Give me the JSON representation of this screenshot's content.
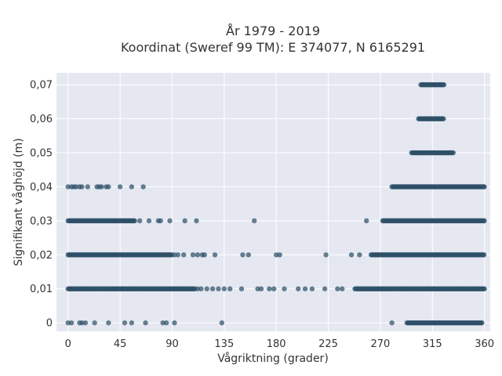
{
  "chart_data": {
    "type": "scatter",
    "title_line1": "År 1979 - 2019",
    "title_line2": "Koordinat (Sweref 99 TM): E 374077, N 6165291",
    "xlabel": "Vågriktning (grader)",
    "ylabel": "Signifikant våghöjd (m)",
    "xlim": [
      -10,
      365
    ],
    "ylim": [
      -0.0025,
      0.0735
    ],
    "xticks": [
      0,
      45,
      90,
      135,
      180,
      225,
      270,
      315,
      360
    ],
    "xtick_labels": [
      "0",
      "45",
      "90",
      "135",
      "180",
      "225",
      "270",
      "315",
      "360"
    ],
    "yticks": [
      0,
      0.01,
      0.02,
      0.03,
      0.04,
      0.05,
      0.06,
      0.07
    ],
    "ytick_labels": [
      "0",
      "0,01",
      "0,02",
      "0,03",
      "0,04",
      "0,05",
      "0,06",
      "0,07"
    ],
    "grid": true,
    "marker_color": "#2e5068",
    "plot_background": "#e5e8f1",
    "clusters": [
      {
        "y": 0.07,
        "x_range": [
          305,
          325
        ]
      },
      {
        "y": 0.06,
        "x_range": [
          303,
          325
        ]
      },
      {
        "y": 0.05,
        "x_range": [
          297,
          333
        ]
      },
      {
        "y": 0.04,
        "x_range": [
          280,
          360
        ]
      },
      {
        "y": 0.03,
        "x_range": [
          272,
          360
        ]
      },
      {
        "y": 0.02,
        "x_range": [
          262,
          360
        ]
      },
      {
        "y": 0.01,
        "x_range": [
          248,
          360
        ]
      },
      {
        "y": 0.0,
        "x_range": [
          293,
          358
        ]
      },
      {
        "y": 0.01,
        "x_range": [
          0,
          110
        ]
      },
      {
        "y": 0.02,
        "x_range": [
          0,
          90
        ]
      },
      {
        "y": 0.03,
        "x_range": [
          0,
          58
        ]
      }
    ],
    "points": [
      {
        "x": 0,
        "y": 0.04
      },
      {
        "x": 3,
        "y": 0.04
      },
      {
        "x": 5,
        "y": 0.04
      },
      {
        "x": 7,
        "y": 0.04
      },
      {
        "x": 10,
        "y": 0.04
      },
      {
        "x": 12,
        "y": 0.04
      },
      {
        "x": 17,
        "y": 0.04
      },
      {
        "x": 25,
        "y": 0.04
      },
      {
        "x": 27,
        "y": 0.04
      },
      {
        "x": 29,
        "y": 0.04
      },
      {
        "x": 33,
        "y": 0.04
      },
      {
        "x": 35,
        "y": 0.04
      },
      {
        "x": 45,
        "y": 0.04
      },
      {
        "x": 55,
        "y": 0.04
      },
      {
        "x": 65,
        "y": 0.04
      },
      {
        "x": 62,
        "y": 0.03
      },
      {
        "x": 70,
        "y": 0.03
      },
      {
        "x": 78,
        "y": 0.03
      },
      {
        "x": 80,
        "y": 0.03
      },
      {
        "x": 88,
        "y": 0.03
      },
      {
        "x": 101,
        "y": 0.03
      },
      {
        "x": 111,
        "y": 0.03
      },
      {
        "x": 161,
        "y": 0.03
      },
      {
        "x": 258,
        "y": 0.03
      },
      {
        "x": 92,
        "y": 0.02
      },
      {
        "x": 95,
        "y": 0.02
      },
      {
        "x": 100,
        "y": 0.02
      },
      {
        "x": 108,
        "y": 0.02
      },
      {
        "x": 112,
        "y": 0.02
      },
      {
        "x": 116,
        "y": 0.02
      },
      {
        "x": 118,
        "y": 0.02
      },
      {
        "x": 127,
        "y": 0.02
      },
      {
        "x": 151,
        "y": 0.02
      },
      {
        "x": 156,
        "y": 0.02
      },
      {
        "x": 180,
        "y": 0.02
      },
      {
        "x": 183,
        "y": 0.02
      },
      {
        "x": 223,
        "y": 0.02
      },
      {
        "x": 245,
        "y": 0.02
      },
      {
        "x": 252,
        "y": 0.02
      },
      {
        "x": 112,
        "y": 0.01
      },
      {
        "x": 115,
        "y": 0.01
      },
      {
        "x": 120,
        "y": 0.01
      },
      {
        "x": 125,
        "y": 0.01
      },
      {
        "x": 130,
        "y": 0.01
      },
      {
        "x": 135,
        "y": 0.01
      },
      {
        "x": 140,
        "y": 0.01
      },
      {
        "x": 150,
        "y": 0.01
      },
      {
        "x": 164,
        "y": 0.01
      },
      {
        "x": 167,
        "y": 0.01
      },
      {
        "x": 174,
        "y": 0.01
      },
      {
        "x": 178,
        "y": 0.01
      },
      {
        "x": 187,
        "y": 0.01
      },
      {
        "x": 199,
        "y": 0.01
      },
      {
        "x": 205,
        "y": 0.01
      },
      {
        "x": 211,
        "y": 0.01
      },
      {
        "x": 222,
        "y": 0.01
      },
      {
        "x": 233,
        "y": 0.01
      },
      {
        "x": 237,
        "y": 0.01
      },
      {
        "x": 0,
        "y": 0.0
      },
      {
        "x": 3,
        "y": 0.0
      },
      {
        "x": 10,
        "y": 0.0
      },
      {
        "x": 12,
        "y": 0.0
      },
      {
        "x": 15,
        "y": 0.0
      },
      {
        "x": 23,
        "y": 0.0
      },
      {
        "x": 35,
        "y": 0.0
      },
      {
        "x": 49,
        "y": 0.0
      },
      {
        "x": 55,
        "y": 0.0
      },
      {
        "x": 67,
        "y": 0.0
      },
      {
        "x": 82,
        "y": 0.0
      },
      {
        "x": 85,
        "y": 0.0
      },
      {
        "x": 92,
        "y": 0.0
      },
      {
        "x": 133,
        "y": 0.0
      },
      {
        "x": 280,
        "y": 0.0
      }
    ]
  }
}
